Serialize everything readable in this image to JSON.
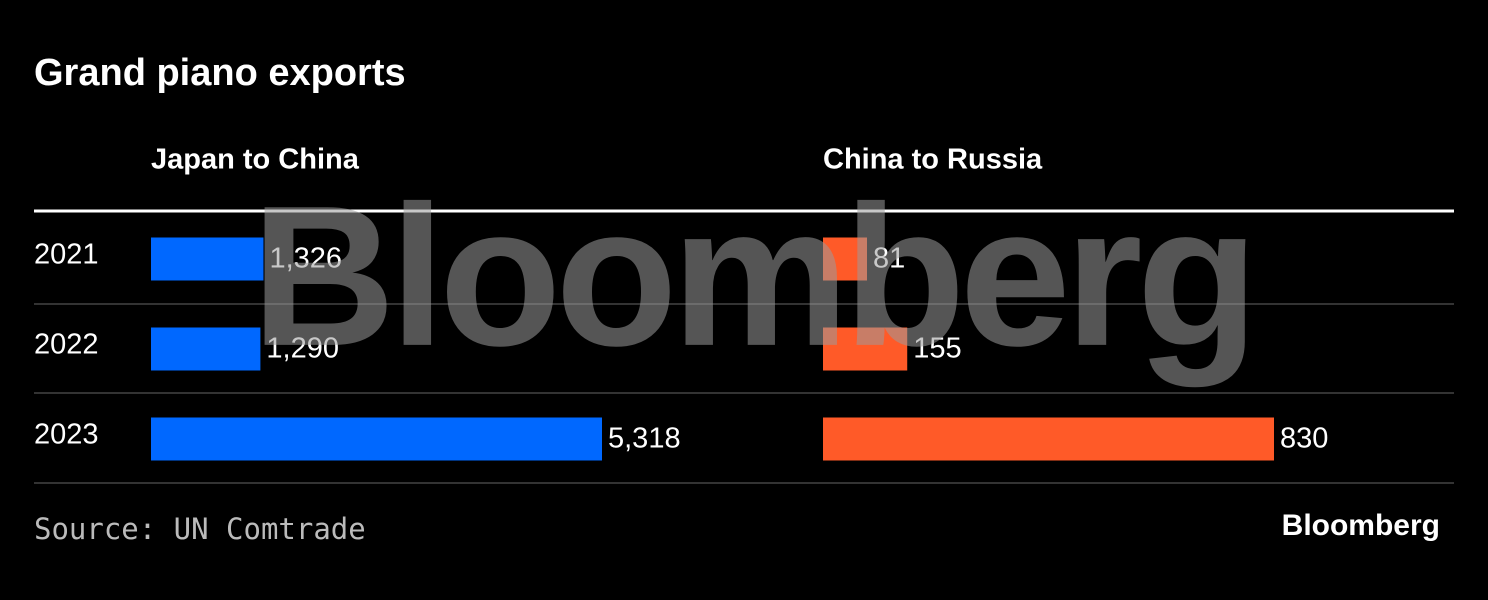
{
  "title": "Grand piano exports",
  "source": "Source: UN Comtrade",
  "logo": "Bloomberg",
  "watermark": "Bloomberg",
  "chart_data": [
    {
      "type": "bar",
      "orientation": "horizontal",
      "title": "Japan to China",
      "categories": [
        "2021",
        "2022",
        "2023"
      ],
      "values": [
        1326,
        1290,
        5318
      ],
      "value_labels": [
        "1,326",
        "1,290",
        "5,318"
      ],
      "color": "#0068ff"
    },
    {
      "type": "bar",
      "orientation": "horizontal",
      "title": "China to Russia",
      "values": [
        81,
        155,
        830
      ],
      "color": "#ff5a28"
    }
  ]
}
